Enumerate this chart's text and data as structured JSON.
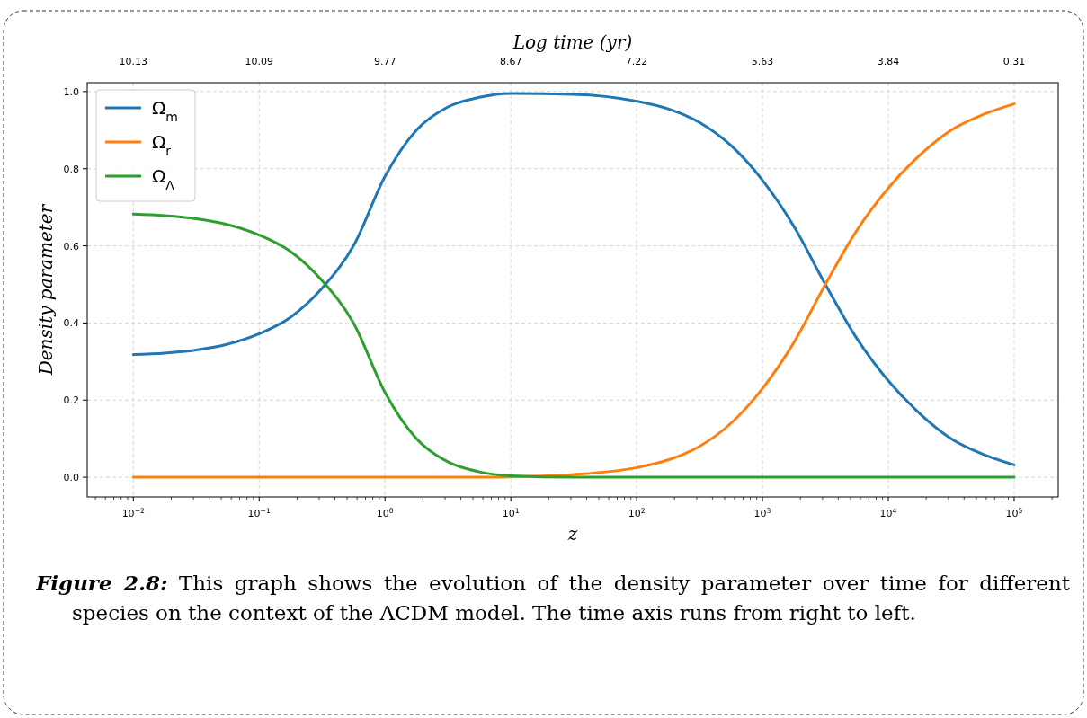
{
  "chart_data": {
    "type": "line",
    "xlabel": "z",
    "ylabel": "Density parameter",
    "x2label": "Log time (yr)",
    "x": [
      0.01,
      0.0178,
      0.0316,
      0.0562,
      0.1,
      0.178,
      0.316,
      0.562,
      1,
      1.78,
      3.16,
      5.62,
      10,
      31.6,
      100,
      178,
      316,
      562,
      1000,
      1780,
      3160,
      5620,
      10000,
      17800,
      31600,
      56200,
      100000
    ],
    "series": [
      {
        "name": "Ω$_{m}$",
        "color": "#1f77b4",
        "values": [
          0.318,
          0.322,
          0.33,
          0.345,
          0.372,
          0.415,
          0.49,
          0.6,
          0.78,
          0.9,
          0.96,
          0.985,
          0.995,
          0.993,
          0.975,
          0.955,
          0.92,
          0.86,
          0.77,
          0.65,
          0.5,
          0.36,
          0.25,
          0.165,
          0.1,
          0.06,
          0.032
        ]
      },
      {
        "name": "Ω$_{r}$",
        "color": "#ff7f0e",
        "values": [
          0,
          0,
          0,
          0,
          0,
          0,
          0,
          0,
          0,
          0,
          0,
          0,
          0.001,
          0.007,
          0.025,
          0.045,
          0.08,
          0.14,
          0.23,
          0.35,
          0.5,
          0.64,
          0.75,
          0.835,
          0.9,
          0.94,
          0.968
        ]
      },
      {
        "name": "Ω$_{Λ}$",
        "color": "#2ca02c",
        "values": [
          0.682,
          0.678,
          0.67,
          0.655,
          0.628,
          0.585,
          0.51,
          0.4,
          0.22,
          0.1,
          0.04,
          0.014,
          0.004,
          0,
          0,
          0,
          0,
          0,
          0,
          0,
          0,
          0,
          0,
          0,
          0,
          0,
          0
        ]
      }
    ],
    "log": "x",
    "xlim": [
      0.0043,
      224000
    ],
    "xticks": [
      {
        "value": 0.01,
        "label": "10$^{−2}$"
      },
      {
        "value": 0.1,
        "label": "10$^{−1}$"
      },
      {
        "value": 1,
        "label": "10$^{0}$"
      },
      {
        "value": 10,
        "label": "10$^{1}$"
      },
      {
        "value": 100,
        "label": "10$^{2}$"
      },
      {
        "value": 1000,
        "label": "10$^{3}$"
      },
      {
        "value": 10000,
        "label": "10$^{4}$"
      },
      {
        "value": 100000,
        "label": "10$^{5}$"
      }
    ],
    "ylim": [
      -0.051,
      1.023
    ],
    "yticks": [
      {
        "value": 0,
        "label": "0.0"
      },
      {
        "value": 0.2,
        "label": "0.2"
      },
      {
        "value": 0.4,
        "label": "0.4"
      },
      {
        "value": 0.6,
        "label": "0.6"
      },
      {
        "value": 0.8,
        "label": "0.8"
      },
      {
        "value": 1,
        "label": "1.0"
      }
    ],
    "grid": true,
    "legend": "top left",
    "line_style": "solid",
    "marker": "none",
    "annotations": [
      "Figure 2.8: This graph shows the evolution of the density parameter over time for different species on the context of the ΛCDM model. The time axis runs from right to left.",
      "10.13",
      "10.09",
      "9.77",
      "8.67",
      "7.22",
      "5.63",
      "3.84",
      "0.31"
    ]
  }
}
